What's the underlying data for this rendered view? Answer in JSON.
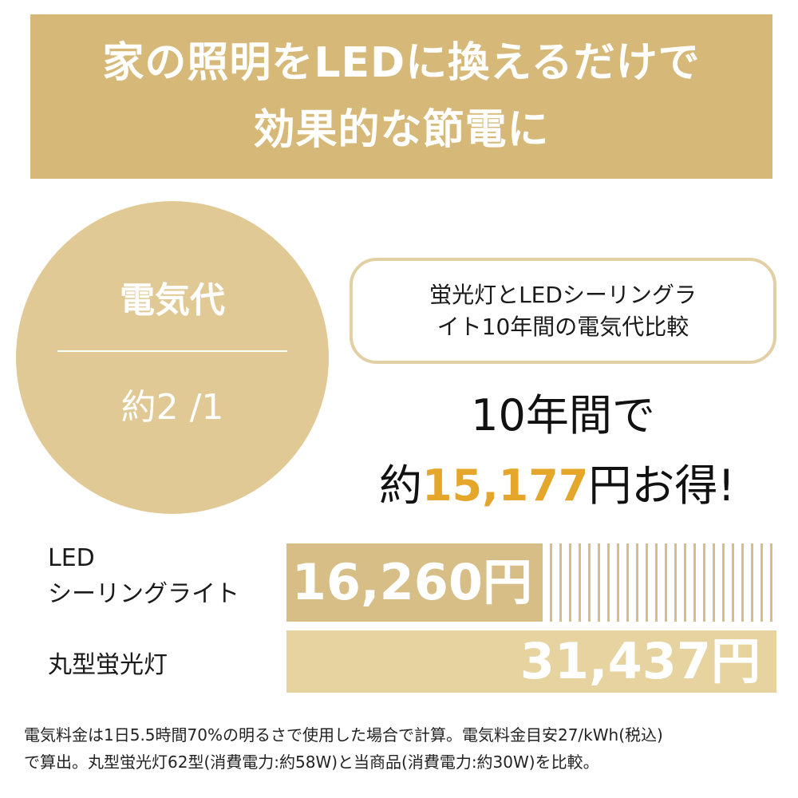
{
  "banner": {
    "line1": "家の照明をLEDに換えるだけで",
    "line2": "効果的な節電に"
  },
  "circle": {
    "top": "電気代",
    "bottom": "約2 /1"
  },
  "compare_box": {
    "line1": "蛍光灯とLEDシーリングラ",
    "line2": "イト10年間の電気代比較"
  },
  "savings": {
    "line1": "10年間で",
    "prefix": "約",
    "amount": "15,177",
    "suffix": "円お得!"
  },
  "colors": {
    "banner": "#d6b978",
    "circle": "#e0c995",
    "accent": "#e5a62c",
    "led_bar": "#d7be86",
    "fluorescent_bar": "#e7d39f"
  },
  "chart_data": {
    "type": "bar",
    "orientation": "horizontal",
    "title": "蛍光灯とLEDシーリングライト10年間の電気代比較",
    "categories": [
      "LED シーリングライト",
      "丸型蛍光灯"
    ],
    "category_lines": [
      [
        "LED",
        "シーリングライト"
      ],
      [
        "丸型蛍光灯"
      ]
    ],
    "values": [
      16260,
      31437
    ],
    "value_labels": [
      "16,260円",
      "31,437円"
    ],
    "unit": "円",
    "xlim": [
      0,
      31437
    ],
    "grid": false
  },
  "footnote": {
    "line1": "電気料金は1日5.5時間70%の明るさで使用した場合で計算。電気料金目安27/kWh(税込)",
    "line2": "で算出。丸型蛍光灯62型(消費電力:約58W)と当商品(消費電力:約30W)を比較。"
  }
}
